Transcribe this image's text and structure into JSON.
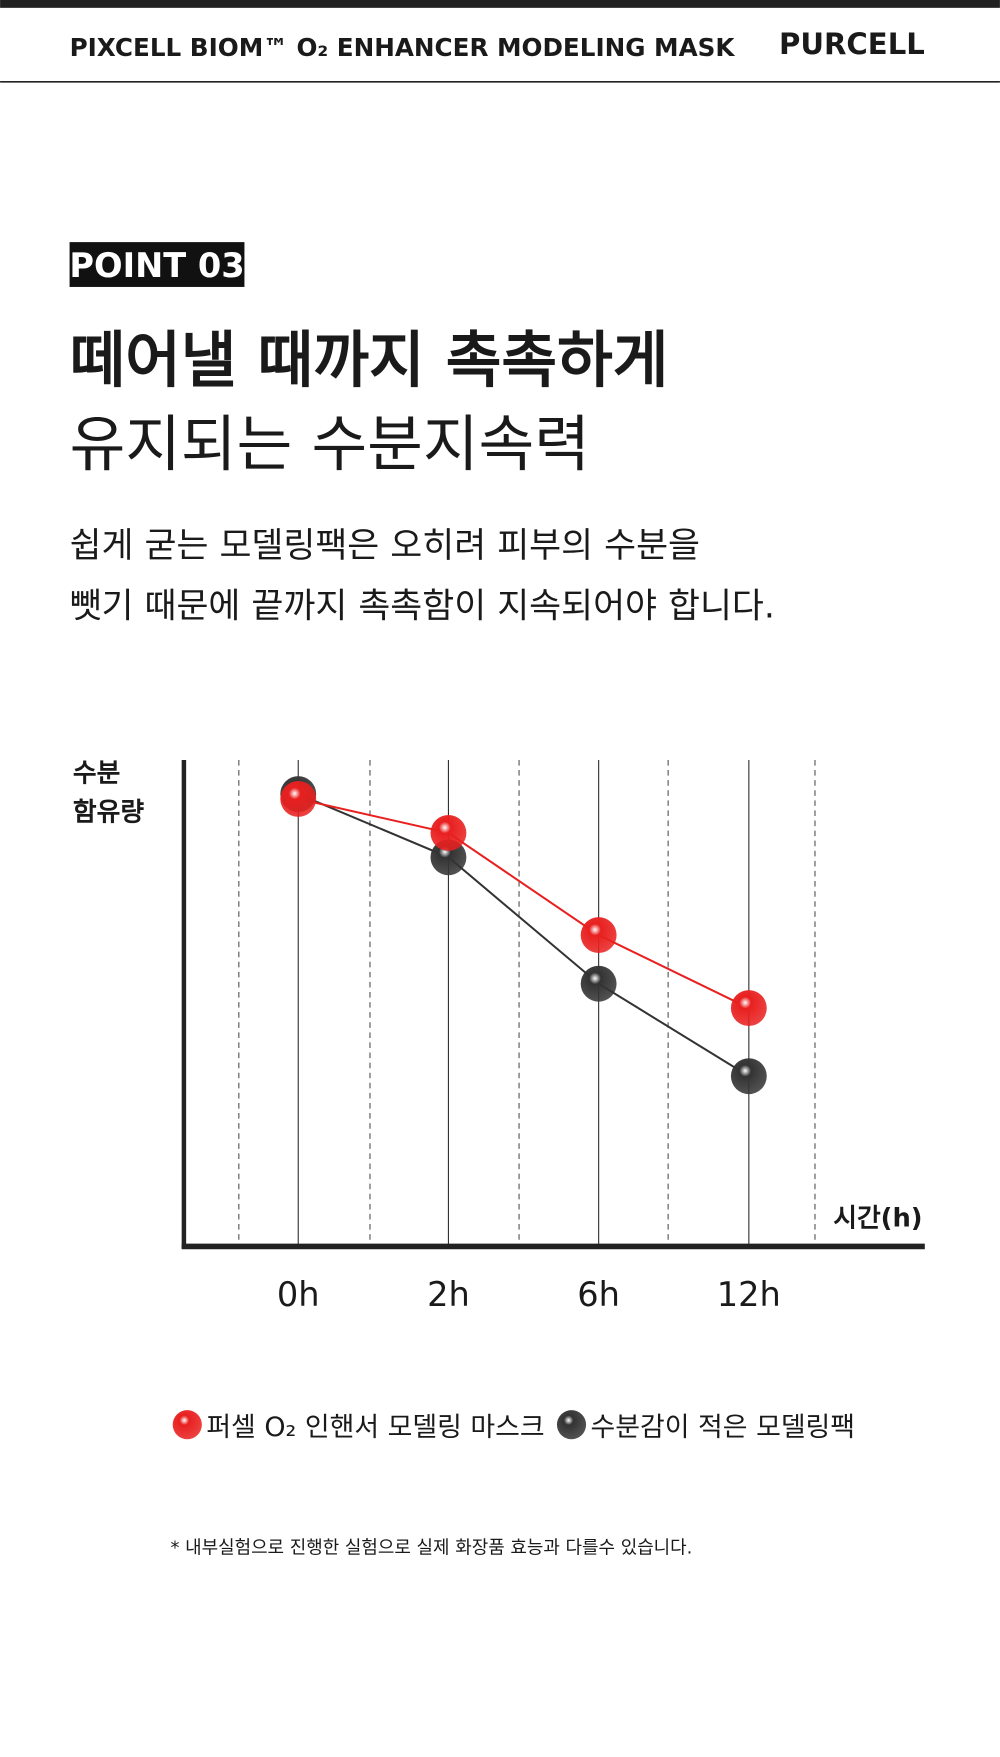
{
  "header": {
    "product": "PIXCELL BIOM™ O₂ ENHANCER MODELING MASK",
    "brand": "PURCELL"
  },
  "badge": "POINT 03",
  "headline": [
    "떼어낼 때까지 촉촉하게",
    "유지되는 수분지속력"
  ],
  "body": [
    "쉽게 굳는 모델링팩은 오히려 피부의 수분을",
    "뺏기 때문에 끝까지 촉촉함이 지속되어야 합니다."
  ],
  "chart_data": {
    "type": "line",
    "y_label": [
      "수분",
      "함유량"
    ],
    "x_label": "시간(h)",
    "categories": [
      "0h",
      "2h",
      "6h",
      "12h"
    ],
    "ylim": [
      0,
      100
    ],
    "series": [
      {
        "name": "퍼셀 O₂ 인핸서 모델링 마스크",
        "color": "#e8201f",
        "values": [
          92,
          85,
          64,
          49
        ]
      },
      {
        "name": "수분감이 적은 모델링팩",
        "color": "#333333",
        "values": [
          93,
          80,
          54,
          35
        ]
      }
    ]
  },
  "footnote": "* 내부실험으로 진행한 실험으로 실제 화장품 효능과 다를수 있습니다."
}
